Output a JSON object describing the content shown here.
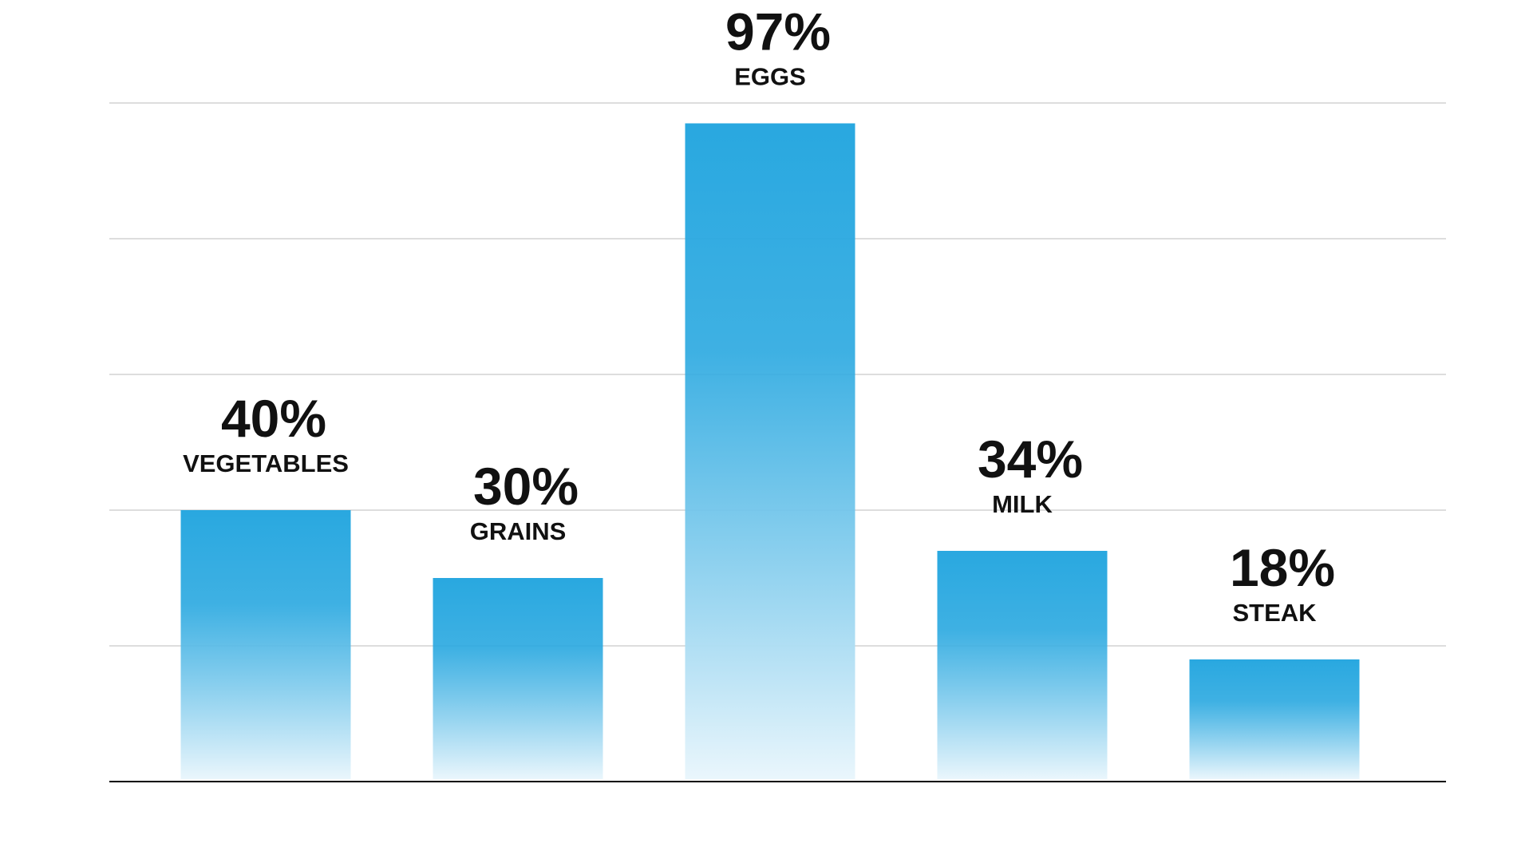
{
  "chart_data": {
    "type": "bar",
    "categories": [
      "VEGETABLES",
      "GRAINS",
      "EGGS",
      "MILK",
      "STEAK"
    ],
    "values": [
      40,
      30,
      97,
      34,
      18
    ],
    "value_labels": [
      "40%",
      "30%",
      "97%",
      "34%",
      "18%"
    ],
    "ylim": [
      0,
      100
    ],
    "grid": true,
    "gridlines": [
      20,
      40,
      60,
      80,
      100
    ],
    "colors": {
      "bar_top": "#29a8e0",
      "bar_bottom": "#eaf6fc",
      "grid": "#dddddd",
      "axis": "#000000",
      "text": "#111111"
    }
  }
}
